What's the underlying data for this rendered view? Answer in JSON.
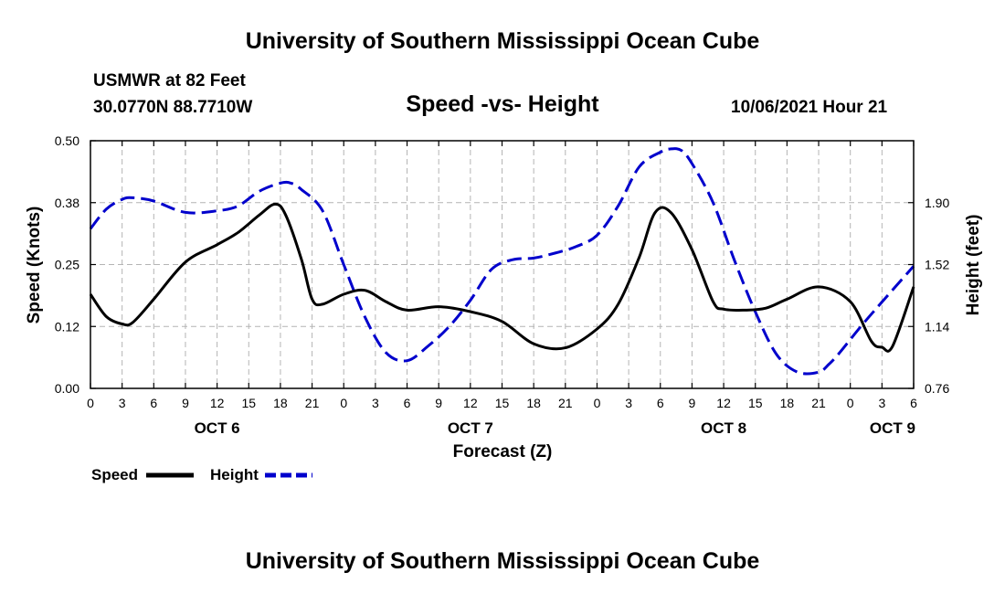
{
  "header": {
    "title": "University of Southern Mississippi Ocean Cube",
    "station": "USMWR at 82 Feet",
    "coords": "30.0770N  88.7710W",
    "datetime": "10/06/2021 Hour 21"
  },
  "footer": {
    "title": "University of Southern Mississippi Ocean Cube"
  },
  "chart_data": {
    "type": "line",
    "title": "Speed -vs- Height",
    "xlabel": "Forecast (Z)",
    "ylabel": "Speed (Knots)",
    "y2label": "Height (feet)",
    "xlim": [
      0,
      78
    ],
    "ylim": [
      0,
      0.5
    ],
    "y2lim": [
      0.76,
      2.28
    ],
    "x_ticks": [
      0,
      3,
      6,
      9,
      12,
      15,
      18,
      21,
      24,
      27,
      30,
      33,
      36,
      39,
      42,
      45,
      48,
      51,
      54,
      57,
      60,
      63,
      66,
      69,
      72,
      75,
      78
    ],
    "x_tick_labels": [
      "0",
      "3",
      "6",
      "9",
      "12",
      "15",
      "18",
      "21",
      "0",
      "3",
      "6",
      "9",
      "12",
      "15",
      "18",
      "21",
      "0",
      "3",
      "6",
      "9",
      "12",
      "15",
      "18",
      "21",
      "0",
      "3",
      "6"
    ],
    "y_ticks": [
      0,
      0.125,
      0.25,
      0.375,
      0.5
    ],
    "y_tick_labels": [
      "0.00",
      "0.12",
      "0.25",
      "0.38",
      "0.50"
    ],
    "y2_ticks": [
      0.76,
      1.14,
      1.52,
      1.9
    ],
    "y2_tick_labels": [
      "0.76",
      "1.14",
      "1.52",
      "1.90"
    ],
    "day_labels": [
      {
        "x": 12,
        "label": "OCT 6"
      },
      {
        "x": 36,
        "label": "OCT 7"
      },
      {
        "x": 60,
        "label": "OCT 8"
      },
      {
        "x": 76,
        "label": "OCT 9"
      }
    ],
    "colors": {
      "speed": "#000000",
      "height": "#0000cc",
      "grid": "#b4b4b4"
    },
    "series": [
      {
        "name": "Speed",
        "axis": "left",
        "style": "solid",
        "x": [
          0,
          1.5,
          3,
          4,
          6,
          9,
          12,
          14,
          16,
          17.5,
          18.5,
          20,
          21,
          22,
          24,
          26,
          28,
          30,
          33,
          36,
          39,
          42,
          45,
          48,
          50,
          52,
          53.5,
          55,
          57,
          59,
          60,
          62,
          64,
          66,
          69,
          72,
          74,
          75,
          76,
          78
        ],
        "values": [
          0.19,
          0.145,
          0.13,
          0.133,
          0.18,
          0.255,
          0.29,
          0.315,
          0.35,
          0.372,
          0.35,
          0.26,
          0.18,
          0.17,
          0.19,
          0.198,
          0.175,
          0.158,
          0.165,
          0.155,
          0.135,
          0.09,
          0.082,
          0.12,
          0.17,
          0.265,
          0.355,
          0.355,
          0.28,
          0.175,
          0.16,
          0.158,
          0.162,
          0.18,
          0.205,
          0.175,
          0.095,
          0.083,
          0.085,
          0.205
        ]
      },
      {
        "name": "Height",
        "axis": "right",
        "style": "dashed",
        "x": [
          0,
          1.5,
          3,
          4,
          6,
          9,
          12,
          14,
          16,
          18,
          19,
          20,
          22,
          24,
          26,
          28,
          30,
          32,
          34,
          36,
          38,
          40,
          42,
          44,
          46,
          48,
          50,
          52,
          54,
          55,
          56,
          57,
          59,
          61,
          63,
          65,
          67,
          69,
          70,
          71,
          73,
          75,
          78
        ],
        "values": [
          1.74,
          1.86,
          1.92,
          1.93,
          1.91,
          1.84,
          1.85,
          1.88,
          1.97,
          2.02,
          2.02,
          1.98,
          1.85,
          1.52,
          1.2,
          0.98,
          0.93,
          1.02,
          1.14,
          1.3,
          1.49,
          1.55,
          1.56,
          1.59,
          1.63,
          1.7,
          1.88,
          2.12,
          2.21,
          2.23,
          2.22,
          2.14,
          1.9,
          1.55,
          1.23,
          0.97,
          0.86,
          0.86,
          0.91,
          0.98,
          1.14,
          1.29,
          1.51
        ]
      }
    ],
    "legend": [
      {
        "label": "Speed",
        "style": "solid"
      },
      {
        "label": "Height",
        "style": "dashed"
      }
    ],
    "legend_position": "bottom-left"
  }
}
